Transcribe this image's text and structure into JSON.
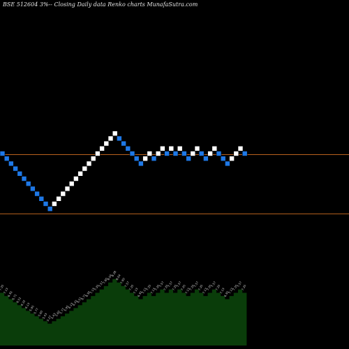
{
  "header": {
    "title": "BSE 512604  3%-- Closing Daily data  Renko  charts MunafaSutra.com"
  },
  "colors": {
    "background": "#000000",
    "up_brick": "#ffffff",
    "down_brick": "#1e78e6",
    "level_line": "#b8621e",
    "volume_fill": "#0a3d0a"
  },
  "chart_data": [
    {
      "type": "renko",
      "title": "BSE 512604  3%-- Closing Daily data  Renko  charts MunafaSutra.com",
      "price_levels": [
        7.35,
        5.22
      ],
      "level_display_range": [
        3.8,
        10.0
      ],
      "bricks": [
        {
          "d": "down",
          "v": 7.35
        },
        {
          "d": "down",
          "v": 7.13
        },
        {
          "d": "down",
          "v": 6.92
        },
        {
          "d": "down",
          "v": 6.71
        },
        {
          "d": "down",
          "v": 6.51
        },
        {
          "d": "down",
          "v": 6.32
        },
        {
          "d": "down",
          "v": 6.13
        },
        {
          "d": "down",
          "v": 5.95
        },
        {
          "d": "down",
          "v": 5.77
        },
        {
          "d": "down",
          "v": 5.6
        },
        {
          "d": "down",
          "v": 5.43
        },
        {
          "d": "down",
          "v": 5.27
        },
        {
          "d": "up",
          "v": 5.43
        },
        {
          "d": "up",
          "v": 5.6
        },
        {
          "d": "up",
          "v": 5.77
        },
        {
          "d": "up",
          "v": 5.95
        },
        {
          "d": "up",
          "v": 6.13
        },
        {
          "d": "up",
          "v": 6.32
        },
        {
          "d": "up",
          "v": 6.51
        },
        {
          "d": "up",
          "v": 6.71
        },
        {
          "d": "up",
          "v": 6.92
        },
        {
          "d": "up",
          "v": 7.13
        },
        {
          "d": "up",
          "v": 7.35
        },
        {
          "d": "up",
          "v": 7.57
        },
        {
          "d": "up",
          "v": 7.8
        },
        {
          "d": "up",
          "v": 8.04
        },
        {
          "d": "up",
          "v": 8.28
        },
        {
          "d": "down",
          "v": 8.04
        },
        {
          "d": "down",
          "v": 7.8
        },
        {
          "d": "down",
          "v": 7.57
        },
        {
          "d": "down",
          "v": 7.35
        },
        {
          "d": "down",
          "v": 7.13
        },
        {
          "d": "down",
          "v": 6.92
        },
        {
          "d": "up",
          "v": 7.13
        },
        {
          "d": "up",
          "v": 7.35
        },
        {
          "d": "down",
          "v": 7.13
        },
        {
          "d": "up",
          "v": 7.35
        },
        {
          "d": "up",
          "v": 7.57
        },
        {
          "d": "down",
          "v": 7.35
        },
        {
          "d": "up",
          "v": 7.57
        },
        {
          "d": "down",
          "v": 7.35
        },
        {
          "d": "up",
          "v": 7.57
        },
        {
          "d": "down",
          "v": 7.35
        },
        {
          "d": "down",
          "v": 7.13
        },
        {
          "d": "up",
          "v": 7.35
        },
        {
          "d": "up",
          "v": 7.57
        },
        {
          "d": "down",
          "v": 7.35
        },
        {
          "d": "down",
          "v": 7.13
        },
        {
          "d": "up",
          "v": 7.35
        },
        {
          "d": "up",
          "v": 7.57
        },
        {
          "d": "down",
          "v": 7.35
        },
        {
          "d": "down",
          "v": 7.13
        },
        {
          "d": "down",
          "v": 6.92
        },
        {
          "d": "up",
          "v": 7.13
        },
        {
          "d": "up",
          "v": 7.35
        },
        {
          "d": "up",
          "v": 7.57
        },
        {
          "d": "down",
          "v": 7.35
        }
      ],
      "volume_profile": [
        {
          "v": 7.35,
          "label": "7.35"
        },
        {
          "v": 7.13,
          "label": "7.13"
        },
        {
          "v": 6.92,
          "label": "6.92"
        },
        {
          "v": 6.71,
          "label": "6.71"
        },
        {
          "v": 6.51,
          "label": "6.51"
        },
        {
          "v": 6.32,
          "label": "6.32"
        },
        {
          "v": 6.13,
          "label": "6.13"
        },
        {
          "v": 5.95,
          "label": "5.95"
        },
        {
          "v": 5.77,
          "label": "5.77"
        },
        {
          "v": 5.6,
          "label": "5.60"
        },
        {
          "v": 5.43,
          "label": "5.43"
        },
        {
          "v": 5.27,
          "label": "5.27"
        },
        {
          "v": 5.43,
          "label": "5.43"
        },
        {
          "v": 5.6,
          "label": "5.60"
        },
        {
          "v": 5.77,
          "label": "5.77"
        },
        {
          "v": 5.95,
          "label": "5.95"
        },
        {
          "v": 6.13,
          "label": "6.13"
        },
        {
          "v": 6.32,
          "label": "6.32"
        },
        {
          "v": 6.51,
          "label": "6.51"
        },
        {
          "v": 6.71,
          "label": "6.71"
        },
        {
          "v": 6.92,
          "label": "6.92"
        },
        {
          "v": 7.13,
          "label": "7.13"
        },
        {
          "v": 7.35,
          "label": "7.35"
        },
        {
          "v": 7.57,
          "label": "7.57"
        },
        {
          "v": 7.8,
          "label": "7.80"
        },
        {
          "v": 8.04,
          "label": "8.04"
        },
        {
          "v": 8.28,
          "label": "8.28"
        },
        {
          "v": 8.04,
          "label": "8.04"
        },
        {
          "v": 7.8,
          "label": "7.80"
        },
        {
          "v": 7.57,
          "label": "7.57"
        },
        {
          "v": 7.35,
          "label": "7.35"
        },
        {
          "v": 7.13,
          "label": "7.13"
        },
        {
          "v": 6.92,
          "label": "6.92"
        },
        {
          "v": 7.13,
          "label": "7.13"
        },
        {
          "v": 7.35,
          "label": "7.35"
        },
        {
          "v": 7.13,
          "label": "7.13"
        },
        {
          "v": 7.35,
          "label": "7.35"
        },
        {
          "v": 7.57,
          "label": "7.57"
        },
        {
          "v": 7.35,
          "label": "7.35"
        },
        {
          "v": 7.57,
          "label": "7.57"
        },
        {
          "v": 7.35,
          "label": "7.35"
        },
        {
          "v": 7.57,
          "label": "7.57"
        },
        {
          "v": 7.35,
          "label": "7.35"
        },
        {
          "v": 7.13,
          "label": "7.13"
        },
        {
          "v": 7.35,
          "label": "7.35"
        },
        {
          "v": 7.57,
          "label": "7.57"
        },
        {
          "v": 7.35,
          "label": "7.35"
        },
        {
          "v": 7.13,
          "label": "7.13"
        },
        {
          "v": 7.35,
          "label": "7.35"
        },
        {
          "v": 7.57,
          "label": "7.57"
        },
        {
          "v": 7.35,
          "label": "7.35"
        },
        {
          "v": 7.13,
          "label": "7.13"
        },
        {
          "v": 6.92,
          "label": "6.92"
        },
        {
          "v": 7.13,
          "label": "7.13"
        },
        {
          "v": 7.35,
          "label": "7.35"
        },
        {
          "v": 7.57,
          "label": "7.57"
        },
        {
          "v": 7.35,
          "label": "7.35"
        }
      ],
      "volume_range": [
        3.8,
        8.5
      ],
      "legend": "none",
      "grid": false
    }
  ]
}
